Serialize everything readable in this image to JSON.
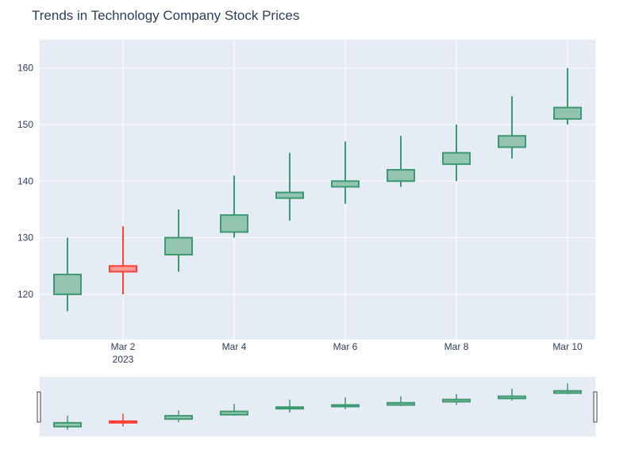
{
  "chart_data": {
    "type": "candlestick",
    "title": "Trends in Technology Company Stock Prices",
    "xlabel": "",
    "ylabel": "",
    "x": [
      "2023-03-01",
      "2023-03-02",
      "2023-03-03",
      "2023-03-04",
      "2023-03-05",
      "2023-03-06",
      "2023-03-07",
      "2023-03-08",
      "2023-03-09",
      "2023-03-10"
    ],
    "open": [
      120,
      125,
      127,
      131,
      137,
      139,
      140,
      143,
      146,
      151
    ],
    "high": [
      130,
      132,
      135,
      141,
      145,
      147,
      148,
      150,
      155,
      160
    ],
    "low": [
      117,
      120,
      124,
      130,
      133,
      136,
      139,
      140,
      144,
      150
    ],
    "close": [
      123.5,
      124,
      130,
      134,
      138,
      140,
      142,
      145,
      148,
      153
    ],
    "ylim": [
      112,
      165
    ],
    "yticks": [
      120,
      130,
      140,
      150,
      160
    ],
    "xticks": [
      {
        "date": "2023-03-02",
        "label": "Mar 2",
        "sublabel": "2023"
      },
      {
        "date": "2023-03-04",
        "label": "Mar 4",
        "sublabel": ""
      },
      {
        "date": "2023-03-06",
        "label": "Mar 6",
        "sublabel": ""
      },
      {
        "date": "2023-03-08",
        "label": "Mar 8",
        "sublabel": ""
      },
      {
        "date": "2023-03-10",
        "label": "Mar 10",
        "sublabel": ""
      }
    ],
    "grid": true,
    "rangeslider": true,
    "increasing_color": "#3d9970",
    "increasing_fill": "#93c4b0",
    "decreasing_color": "#ff4136",
    "decreasing_fill": "#ff9a94",
    "plot_background": "#e5ecf6",
    "grid_color": "#ffffff",
    "text_color": "#2a3f5f"
  }
}
